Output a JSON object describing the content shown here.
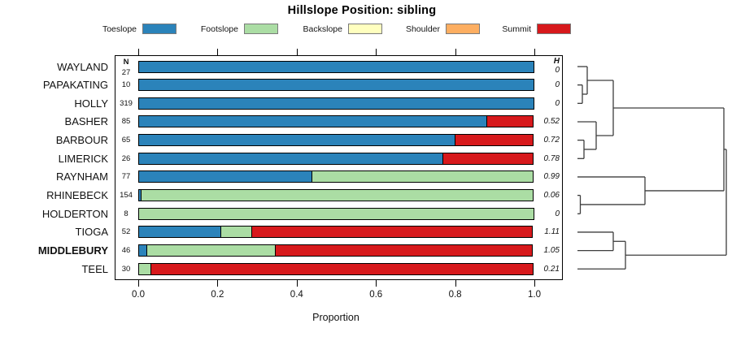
{
  "title": "Hillslope Position: sibling",
  "legend": [
    {
      "label": "Toeslope",
      "color": "#2B83BA"
    },
    {
      "label": "Footslope",
      "color": "#ABDDA4"
    },
    {
      "label": "Backslope",
      "color": "#FFFFBF"
    },
    {
      "label": "Shoulder",
      "color": "#FDAE61"
    },
    {
      "label": "Summit",
      "color": "#D7191C"
    }
  ],
  "columns": {
    "n_header": "N",
    "h_header": "H"
  },
  "axis": {
    "ticks": [
      "0.0",
      "0.2",
      "0.4",
      "0.6",
      "0.8",
      "1.0"
    ],
    "label": "Proportion"
  },
  "chart_data": {
    "type": "bar",
    "stacked": true,
    "orientation": "horizontal",
    "title": "Hillslope Position: sibling",
    "xlabel": "Proportion",
    "xlim": [
      0,
      1
    ],
    "categories": [
      "Toeslope",
      "Footslope",
      "Backslope",
      "Shoulder",
      "Summit"
    ],
    "colors": {
      "Toeslope": "#2B83BA",
      "Footslope": "#ABDDA4",
      "Backslope": "#FFFFBF",
      "Shoulder": "#FDAE61",
      "Summit": "#D7191C"
    },
    "rows": [
      {
        "name": "WAYLAND",
        "n": "27",
        "h": "0",
        "bold": false,
        "segments": [
          {
            "cat": "Toeslope",
            "value": 1.0
          }
        ]
      },
      {
        "name": "PAPAKATING",
        "n": "10",
        "h": "0",
        "bold": false,
        "segments": [
          {
            "cat": "Toeslope",
            "value": 1.0
          }
        ]
      },
      {
        "name": "HOLLY",
        "n": "319",
        "h": "0",
        "bold": false,
        "segments": [
          {
            "cat": "Toeslope",
            "value": 1.0
          }
        ]
      },
      {
        "name": "BASHER",
        "n": "85",
        "h": "0.52",
        "bold": false,
        "segments": [
          {
            "cat": "Toeslope",
            "value": 0.88
          },
          {
            "cat": "Summit",
            "value": 0.12
          }
        ]
      },
      {
        "name": "BARBOUR",
        "n": "65",
        "h": "0.72",
        "bold": false,
        "segments": [
          {
            "cat": "Toeslope",
            "value": 0.8
          },
          {
            "cat": "Summit",
            "value": 0.2
          }
        ]
      },
      {
        "name": "LIMERICK",
        "n": "26",
        "h": "0.78",
        "bold": false,
        "segments": [
          {
            "cat": "Toeslope",
            "value": 0.77
          },
          {
            "cat": "Summit",
            "value": 0.23
          }
        ]
      },
      {
        "name": "RAYNHAM",
        "n": "77",
        "h": "0.99",
        "bold": false,
        "segments": [
          {
            "cat": "Toeslope",
            "value": 0.44
          },
          {
            "cat": "Footslope",
            "value": 0.56
          }
        ]
      },
      {
        "name": "RHINEBECK",
        "n": "154",
        "h": "0.06",
        "bold": false,
        "segments": [
          {
            "cat": "Toeslope",
            "value": 0.008
          },
          {
            "cat": "Footslope",
            "value": 0.992
          }
        ]
      },
      {
        "name": "HOLDERTON",
        "n": "8",
        "h": "0",
        "bold": false,
        "segments": [
          {
            "cat": "Footslope",
            "value": 1.0
          }
        ]
      },
      {
        "name": "TIOGA",
        "n": "52",
        "h": "1.11",
        "bold": false,
        "segments": [
          {
            "cat": "Toeslope",
            "value": 0.21
          },
          {
            "cat": "Footslope",
            "value": 0.08
          },
          {
            "cat": "Summit",
            "value": 0.71
          }
        ]
      },
      {
        "name": "MIDDLEBURY",
        "n": "46",
        "h": "1.05",
        "bold": true,
        "segments": [
          {
            "cat": "Toeslope",
            "value": 0.022
          },
          {
            "cat": "Footslope",
            "value": 0.328
          },
          {
            "cat": "Summit",
            "value": 0.65
          }
        ]
      },
      {
        "name": "TEEL",
        "n": "30",
        "h": "0.21",
        "bold": false,
        "segments": [
          {
            "cat": "Footslope",
            "value": 0.033
          },
          {
            "cat": "Summit",
            "value": 0.967
          }
        ]
      }
    ],
    "dendrogram": {
      "x_leaf": 710,
      "merges": [
        {
          "id": "m23",
          "children": [
            "PAPAKATING",
            "HOLLY"
          ],
          "x": 716
        },
        {
          "id": "mA",
          "children": [
            "WAYLAND",
            "m23"
          ],
          "x": 722
        },
        {
          "id": "m56",
          "children": [
            "BARBOUR",
            "LIMERICK"
          ],
          "x": 718
        },
        {
          "id": "mB",
          "children": [
            "BASHER",
            "m56"
          ],
          "x": 733
        },
        {
          "id": "mAB",
          "children": [
            "mA",
            "mB"
          ],
          "x": 754
        },
        {
          "id": "m89",
          "children": [
            "RHINEBECK",
            "HOLDERTON"
          ],
          "x": 713.5
        },
        {
          "id": "mC",
          "children": [
            "RAYNHAM",
            "m89"
          ],
          "x": 793
        },
        {
          "id": "mABC",
          "children": [
            "mAB",
            "mC"
          ],
          "x": 890
        },
        {
          "id": "m1011",
          "children": [
            "TIOGA",
            "MIDDLEBURY"
          ],
          "x": 754
        },
        {
          "id": "mD",
          "children": [
            "m1011",
            "TEEL"
          ],
          "x": 769
        },
        {
          "id": "root",
          "children": [
            "mABC",
            "mD"
          ],
          "x": 893
        }
      ]
    }
  }
}
